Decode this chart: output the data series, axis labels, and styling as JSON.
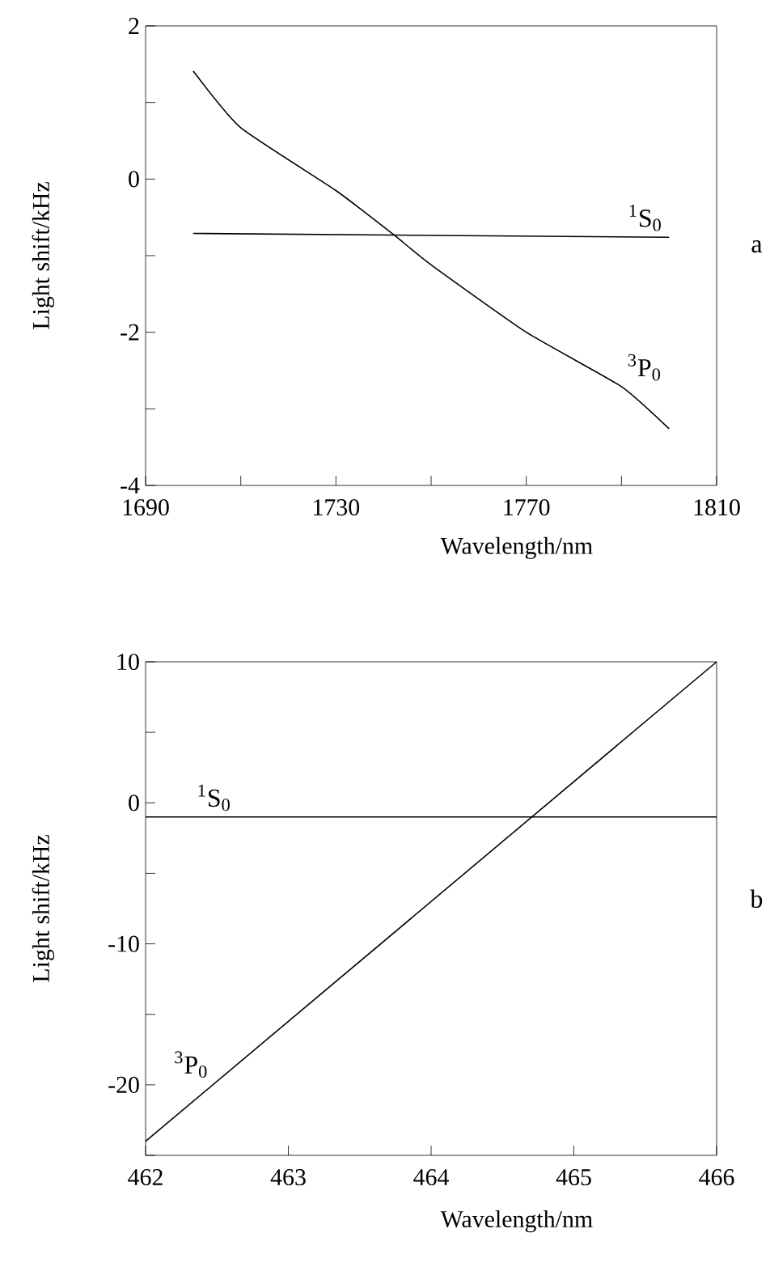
{
  "chart_data": [
    {
      "type": "line",
      "xlabel": "Wavelength/nm",
      "ylabel": "Light shift/kHz",
      "xlim": [
        1690,
        1810
      ],
      "ylim": [
        -4,
        2
      ],
      "xticks": [
        1690,
        {
          "value": 1710,
          "label": null
        },
        1730,
        {
          "value": 1750,
          "label": null
        },
        1770,
        {
          "value": 1790,
          "label": null
        },
        1810
      ],
      "yticks": [
        -4,
        {
          "value": -3,
          "label": null
        },
        -2,
        {
          "value": -1,
          "label": null
        },
        0,
        {
          "value": 1,
          "label": null
        },
        2
      ],
      "series": [
        {
          "name": "$^{3}$P$_{0}$",
          "color": "#000000",
          "x": [
            1700,
            1710,
            1730,
            1742,
            1750,
            1770,
            1790,
            1800
          ],
          "values": [
            1.41,
            0.67,
            -0.15,
            -0.72,
            -1.12,
            -2.0,
            -2.71,
            -3.26
          ]
        },
        {
          "name": "$^{1}$S$_{0}$",
          "color": "#000000",
          "x": [
            1700,
            1800
          ],
          "values": [
            -0.71,
            -0.76
          ]
        }
      ],
      "annotations": [
        "a"
      ]
    },
    {
      "type": "line",
      "xlabel": "Wavelength/nm",
      "ylabel": "Light shift/kHz",
      "xlim": [
        462,
        466
      ],
      "ylim": [
        -25,
        10
      ],
      "xticks": [
        462,
        463,
        464,
        465,
        466
      ],
      "yticks": [
        {
          "value": -25,
          "label": null
        },
        -20,
        {
          "value": -15,
          "label": null
        },
        -10,
        {
          "value": -5,
          "label": null
        },
        0,
        {
          "value": 5,
          "label": null
        },
        10
      ],
      "series": [
        {
          "name": "$^{3}$P$_{0}$",
          "color": "#000000",
          "x": [
            462,
            466
          ],
          "values": [
            -24,
            10
          ]
        },
        {
          "name": "$^{1}$S$_{0}$",
          "color": "#000000",
          "x": [
            462,
            466
          ],
          "values": [
            -1,
            -1
          ]
        }
      ],
      "annotations": [
        "b"
      ]
    }
  ]
}
